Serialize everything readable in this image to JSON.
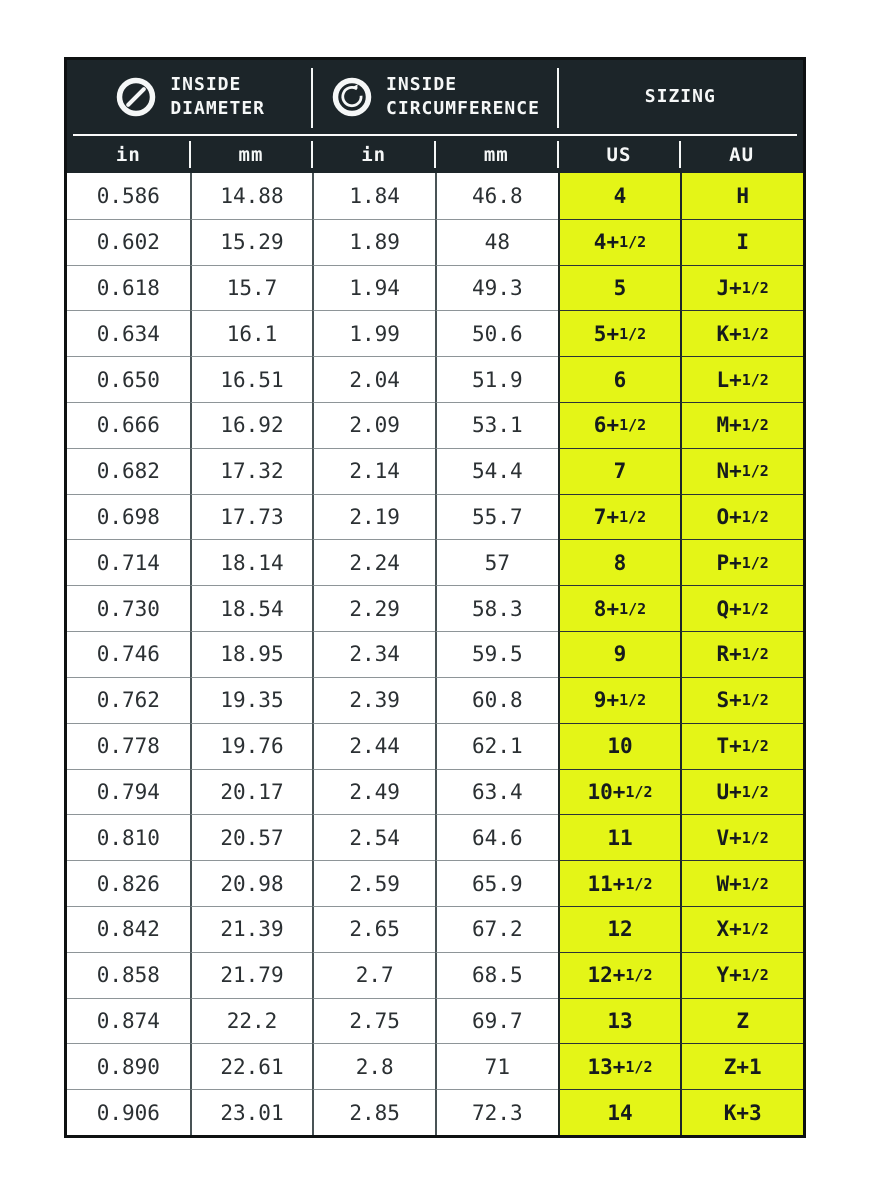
{
  "table": {
    "title_groups": [
      {
        "icon": "diameter-icon",
        "line1": "INSIDE",
        "line2": "DIAMETER"
      },
      {
        "icon": "circumference-icon",
        "line1": "INSIDE",
        "line2": "CIRCUMFERENCE"
      },
      {
        "icon": "",
        "line1": "SIZING",
        "line2": ""
      }
    ],
    "columns": [
      "in",
      "mm",
      "in",
      "mm",
      "US",
      "AU"
    ],
    "rows": [
      [
        "0.586",
        "14.88",
        "1.84",
        "46.8",
        "4",
        "H"
      ],
      [
        "0.602",
        "15.29",
        "1.89",
        "48",
        "4+1/2",
        "I"
      ],
      [
        "0.618",
        "15.7",
        "1.94",
        "49.3",
        "5",
        "J+1/2"
      ],
      [
        "0.634",
        "16.1",
        "1.99",
        "50.6",
        "5+1/2",
        "K+1/2"
      ],
      [
        "0.650",
        "16.51",
        "2.04",
        "51.9",
        "6",
        "L+1/2"
      ],
      [
        "0.666",
        "16.92",
        "2.09",
        "53.1",
        "6+1/2",
        "M+1/2"
      ],
      [
        "0.682",
        "17.32",
        "2.14",
        "54.4",
        "7",
        "N+1/2"
      ],
      [
        "0.698",
        "17.73",
        "2.19",
        "55.7",
        "7+1/2",
        "O+1/2"
      ],
      [
        "0.714",
        "18.14",
        "2.24",
        "57",
        "8",
        "P+1/2"
      ],
      [
        "0.730",
        "18.54",
        "2.29",
        "58.3",
        "8+1/2",
        "Q+1/2"
      ],
      [
        "0.746",
        "18.95",
        "2.34",
        "59.5",
        "9",
        "R+1/2"
      ],
      [
        "0.762",
        "19.35",
        "2.39",
        "60.8",
        "9+1/2",
        "S+1/2"
      ],
      [
        "0.778",
        "19.76",
        "2.44",
        "62.1",
        "10",
        "T+1/2"
      ],
      [
        "0.794",
        "20.17",
        "2.49",
        "63.4",
        "10+1/2",
        "U+1/2"
      ],
      [
        "0.810",
        "20.57",
        "2.54",
        "64.6",
        "11",
        "V+1/2"
      ],
      [
        "0.826",
        "20.98",
        "2.59",
        "65.9",
        "11+1/2",
        "W+1/2"
      ],
      [
        "0.842",
        "21.39",
        "2.65",
        "67.2",
        "12",
        "X+1/2"
      ],
      [
        "0.858",
        "21.79",
        "2.7",
        "68.5",
        "12+1/2",
        "Y+1/2"
      ],
      [
        "0.874",
        "22.2",
        "2.75",
        "69.7",
        "13",
        "Z"
      ],
      [
        "0.890",
        "22.61",
        "2.8",
        "71",
        "13+1/2",
        "Z+1"
      ],
      [
        "0.906",
        "23.01",
        "2.85",
        "72.3",
        "14",
        "K+3"
      ]
    ],
    "colors": {
      "header_bg": "#1c2529",
      "highlight_yellow": "#e4f517",
      "border_black": "#0e1112"
    }
  }
}
